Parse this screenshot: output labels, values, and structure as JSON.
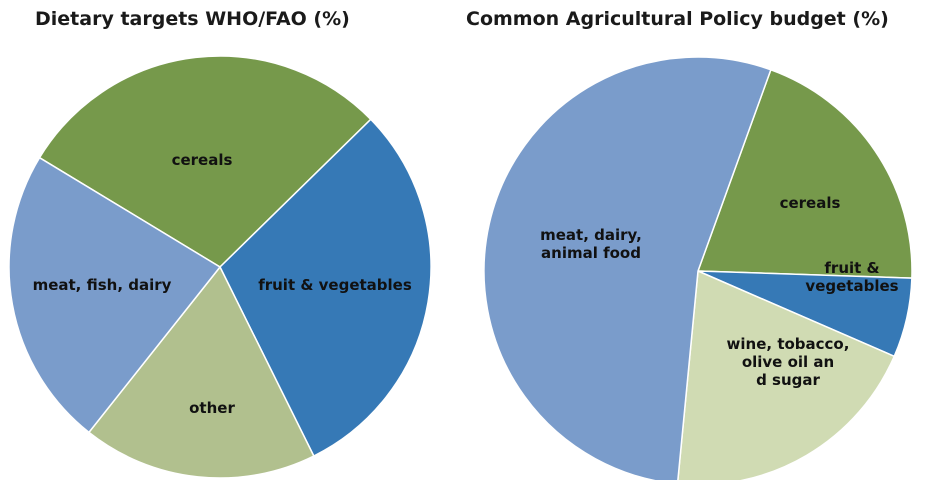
{
  "chart_data": [
    {
      "type": "pie",
      "title": "Dietary targets WHO/FAO (%)",
      "slices": [
        {
          "label": "cereals",
          "value": 29,
          "color": "#76994b"
        },
        {
          "label": "fruit & vegetables",
          "value": 30,
          "color": "#3679b6"
        },
        {
          "label": "other",
          "value": 18,
          "color": "#b1c08e"
        },
        {
          "label": "meat, fish, dairy",
          "value": 23,
          "color": "#7a9ccb"
        }
      ]
    },
    {
      "type": "pie",
      "title": "Common Agricultural Policy budget (%)",
      "slices": [
        {
          "label": "cereals",
          "value": 20,
          "color": "#76994b"
        },
        {
          "label": "fruit & vegetables",
          "value": 6,
          "color": "#3679b6"
        },
        {
          "label": "wine, tobacco, olive oil and sugar",
          "value": 20,
          "color": "#d0dbb3"
        },
        {
          "label": "meat, dairy, animal food",
          "value": 54,
          "color": "#7a9ccb"
        }
      ]
    }
  ]
}
